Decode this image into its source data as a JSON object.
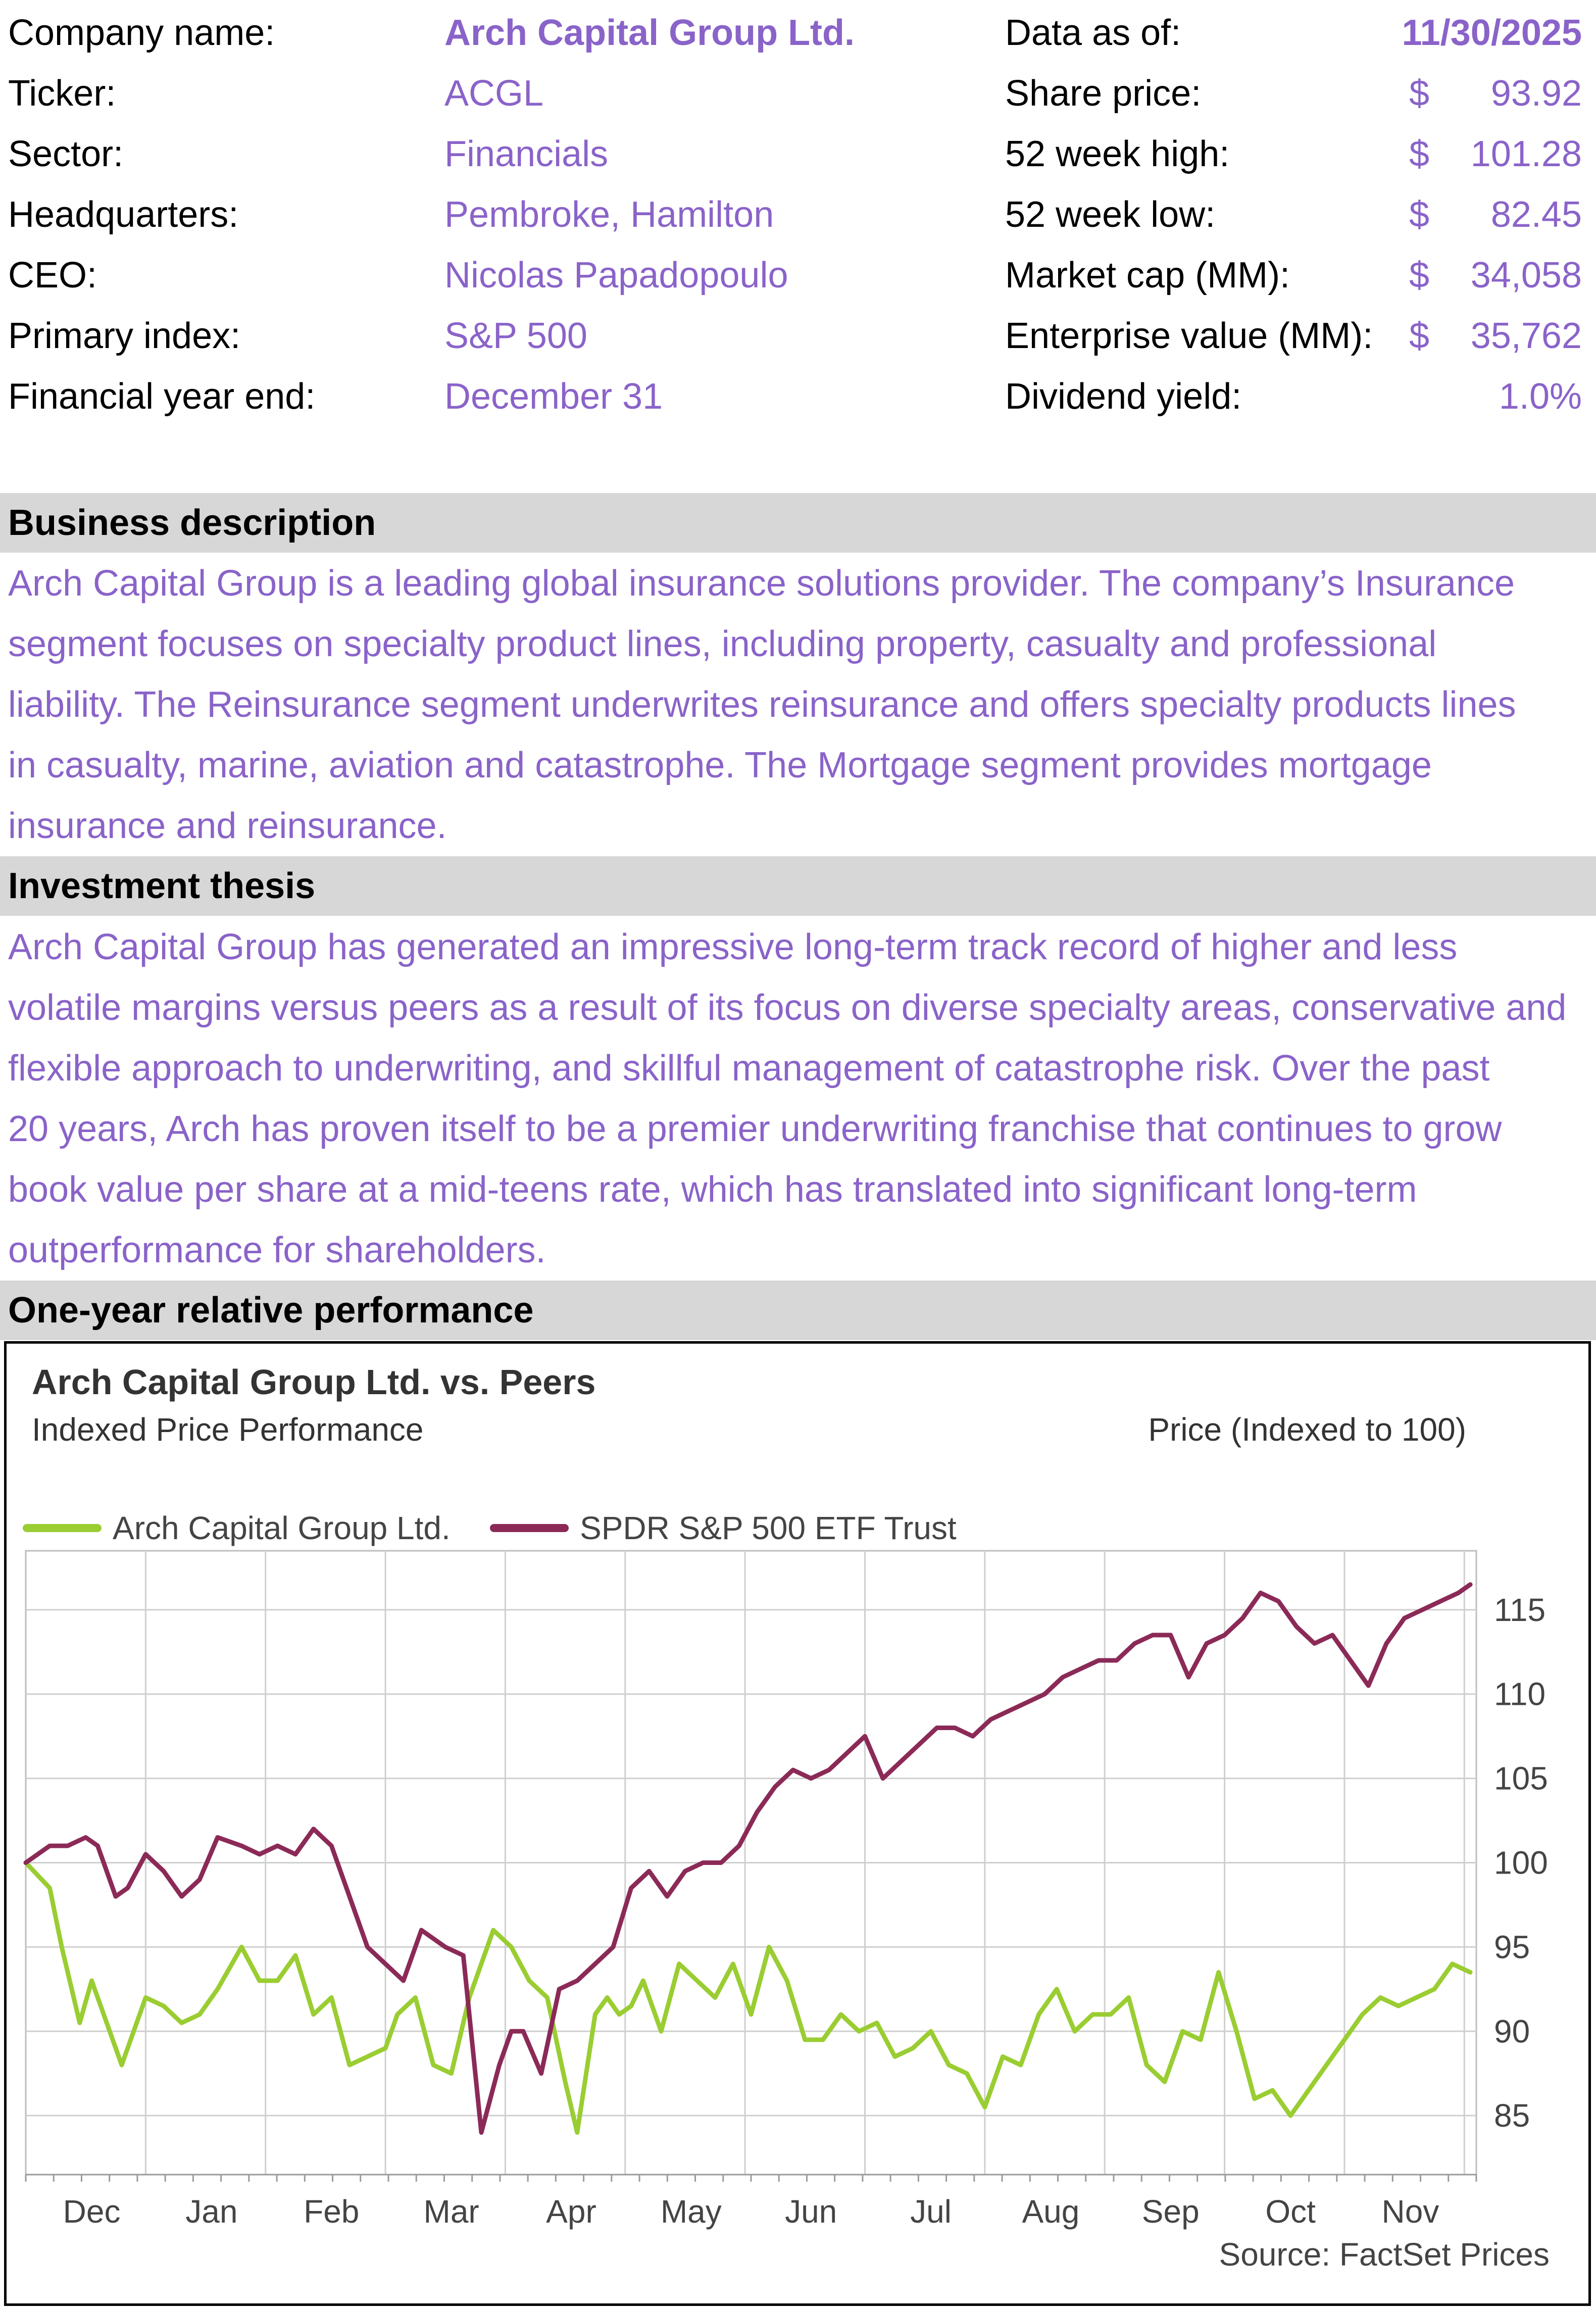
{
  "summary": {
    "left": [
      {
        "label": "Company name:",
        "value": "Arch Capital Group Ltd."
      },
      {
        "label": "Ticker:",
        "value": "ACGL"
      },
      {
        "label": "Sector:",
        "value": "Financials"
      },
      {
        "label": "Headquarters:",
        "value": "Pembroke, Hamilton"
      },
      {
        "label": "CEO:",
        "value": "Nicolas Papadopoulo"
      },
      {
        "label": "Primary index:",
        "value": "S&P 500"
      },
      {
        "label": "Financial year end:",
        "value": "December 31"
      }
    ],
    "right": [
      {
        "label": "Data as of:",
        "dollar": "",
        "value": "11/30/2025"
      },
      {
        "label": "Share price:",
        "dollar": "$",
        "value": "93.92"
      },
      {
        "label": "52 week high:",
        "dollar": "$",
        "value": "101.28"
      },
      {
        "label": "52 week low:",
        "dollar": "$",
        "value": "82.45"
      },
      {
        "label": "Market cap (MM):",
        "dollar": "$",
        "value": "34,058"
      },
      {
        "label": "Enterprise value (MM):",
        "dollar": "$",
        "value": "35,762"
      },
      {
        "label": "Dividend yield:",
        "dollar": "",
        "value": "1.0%"
      }
    ]
  },
  "business": {
    "heading": "Business description",
    "lines": [
      "Arch Capital Group is a leading global insurance solutions provider. The company’s Insurance",
      "segment focuses on specialty product lines, including property, casualty and professional",
      "liability. The Reinsurance segment underwrites reinsurance and offers specialty products lines",
      "in casualty, marine, aviation and catastrophe. The Mortgage segment provides mortgage",
      "insurance and reinsurance."
    ]
  },
  "thesis": {
    "heading": "Investment thesis",
    "lines": [
      "Arch Capital Group has generated an impressive long-term track record of higher and less",
      "volatile margins versus peers as a result of its focus on diverse specialty areas, conservative and",
      "flexible approach to underwriting, and skillful management of catastrophe risk. Over the past",
      "20 years, Arch has proven itself to be a premier underwriting franchise that continues to grow",
      "book value per share at a mid-teens rate, which has translated into significant long-term",
      "outperformance for shareholders."
    ]
  },
  "performance": {
    "heading": "One-year relative performance"
  },
  "chart_data": {
    "type": "line",
    "title": "Arch Capital Group Ltd. vs. Peers",
    "subtitle": "Indexed Price Performance",
    "ylabel": "Price (Indexed to 100)",
    "source": "Source: FactSet Prices",
    "ylim": [
      81.5,
      118.5
    ],
    "yticks": [
      85,
      90,
      95,
      100,
      105,
      110,
      115
    ],
    "x_range": [
      0,
      12.1
    ],
    "month_labels": [
      "Dec",
      "Jan",
      "Feb",
      "Mar",
      "Apr",
      "May",
      "Jun",
      "Jul",
      "Aug",
      "Sep",
      "Oct",
      "Nov"
    ],
    "legend_position": "top-left",
    "grid": true,
    "series": [
      {
        "name": "Arch Capital Group Ltd.",
        "color": "#9acd32",
        "x": [
          0,
          0.2,
          0.3,
          0.45,
          0.55,
          0.65,
          0.8,
          1.0,
          1.15,
          1.3,
          1.45,
          1.6,
          1.8,
          1.95,
          2.1,
          2.25,
          2.4,
          2.55,
          2.7,
          2.85,
          3.0,
          3.1,
          3.25,
          3.4,
          3.55,
          3.7,
          3.9,
          4.05,
          4.2,
          4.35,
          4.5,
          4.6,
          4.75,
          4.85,
          4.95,
          5.05,
          5.15,
          5.3,
          5.45,
          5.6,
          5.75,
          5.9,
          6.05,
          6.2,
          6.35,
          6.5,
          6.65,
          6.8,
          6.95,
          7.1,
          7.25,
          7.4,
          7.55,
          7.7,
          7.85,
          8.0,
          8.15,
          8.3,
          8.45,
          8.6,
          8.75,
          8.9,
          9.05,
          9.2,
          9.35,
          9.5,
          9.65,
          9.8,
          9.95,
          10.1,
          10.25,
          10.4,
          10.55,
          10.7,
          10.85,
          11.0,
          11.15,
          11.3,
          11.45,
          11.6,
          11.75,
          11.9,
          12.05
        ],
        "values": [
          100,
          98.5,
          95,
          90.5,
          93,
          91,
          88,
          92,
          91.5,
          90.5,
          91,
          92.5,
          95,
          93,
          93,
          94.5,
          91,
          92,
          88,
          88.5,
          89,
          91,
          92,
          88,
          87.5,
          92,
          96,
          95,
          93,
          92,
          87,
          84,
          91,
          92,
          91,
          91.5,
          93,
          90,
          94,
          93,
          92,
          94,
          91,
          95,
          93,
          89.5,
          89.5,
          91,
          90,
          90.5,
          88.5,
          89,
          90,
          88,
          87.5,
          85.5,
          88.5,
          88,
          91,
          92.5,
          90,
          91,
          91,
          92,
          88,
          87,
          90,
          89.5,
          93.5,
          90,
          86,
          86.5,
          85,
          86.5,
          88,
          89.5,
          91,
          92,
          91.5,
          92,
          92.5,
          94,
          93.5
        ]
      },
      {
        "name": "SPDR S&P 500 ETF Trust",
        "color": "#8b2a57",
        "x": [
          0,
          0.2,
          0.35,
          0.5,
          0.6,
          0.75,
          0.85,
          1.0,
          1.15,
          1.3,
          1.45,
          1.6,
          1.8,
          1.95,
          2.1,
          2.25,
          2.4,
          2.55,
          2.7,
          2.85,
          3.0,
          3.15,
          3.3,
          3.5,
          3.65,
          3.8,
          3.95,
          4.05,
          4.15,
          4.3,
          4.45,
          4.6,
          4.75,
          4.9,
          5.05,
          5.2,
          5.35,
          5.5,
          5.65,
          5.8,
          5.95,
          6.1,
          6.25,
          6.4,
          6.55,
          6.7,
          6.85,
          7.0,
          7.15,
          7.3,
          7.45,
          7.6,
          7.75,
          7.9,
          8.05,
          8.2,
          8.35,
          8.5,
          8.65,
          8.8,
          8.95,
          9.1,
          9.25,
          9.4,
          9.55,
          9.7,
          9.85,
          10.0,
          10.15,
          10.3,
          10.45,
          10.6,
          10.75,
          10.9,
          11.05,
          11.2,
          11.35,
          11.5,
          11.65,
          11.8,
          11.95,
          12.05
        ],
        "values": [
          100,
          101,
          101,
          101.5,
          101,
          98,
          98.5,
          100.5,
          99.5,
          98,
          99,
          101.5,
          101,
          100.5,
          101,
          100.5,
          102,
          101,
          98,
          95,
          94,
          93,
          96,
          95,
          94.5,
          84,
          88,
          90,
          90,
          87.5,
          92.5,
          93,
          94,
          95,
          98.5,
          99.5,
          98,
          99.5,
          100,
          100,
          101,
          103,
          104.5,
          105.5,
          105,
          105.5,
          106.5,
          107.5,
          105,
          106,
          107,
          108,
          108,
          107.5,
          108.5,
          109,
          109.5,
          110,
          111,
          111.5,
          112,
          112,
          113,
          113.5,
          113.5,
          111,
          113,
          113.5,
          114.5,
          116,
          115.5,
          114,
          113,
          113.5,
          112,
          110.5,
          113,
          114.5,
          115,
          115.5,
          116,
          116.5
        ]
      }
    ]
  }
}
